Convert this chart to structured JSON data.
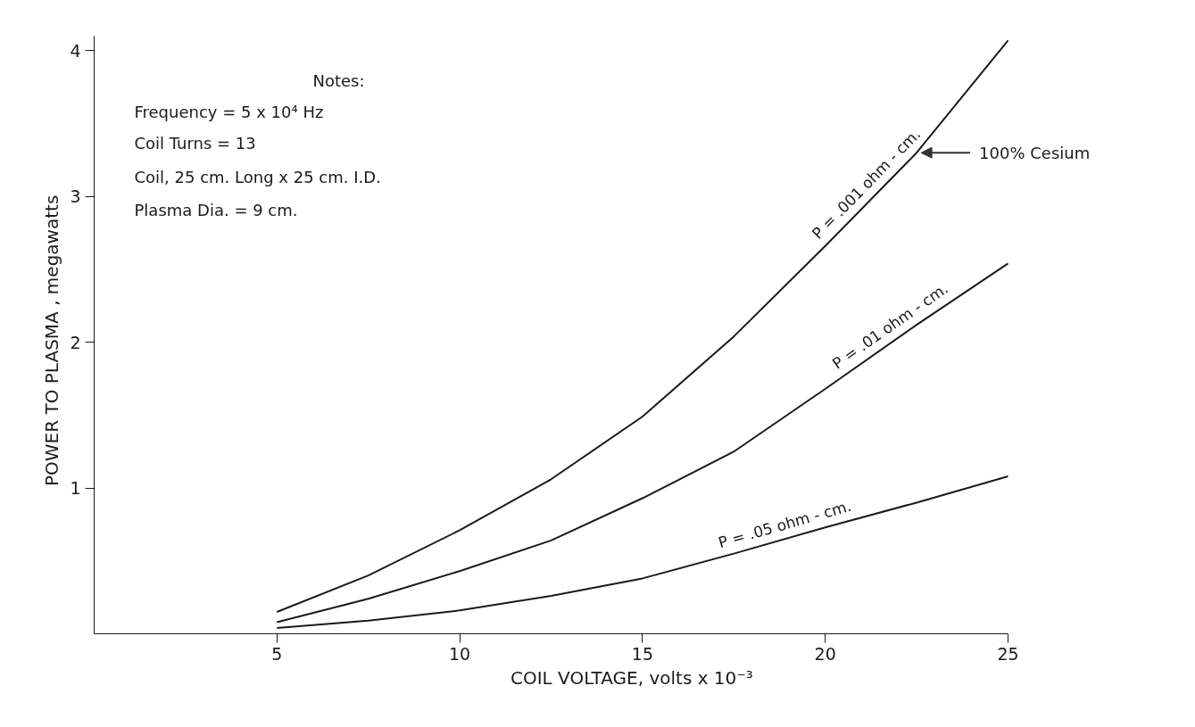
{
  "chart_data": {
    "type": "line",
    "xlabel": "COIL  VOLTAGE,  volts  x 10⁻³",
    "ylabel": "POWER  TO  PLASMA , megawatts",
    "x": [
      5,
      7.5,
      10,
      12.5,
      15,
      17.5,
      20,
      22.5,
      25
    ],
    "series": [
      {
        "name": "P = .001 ohm - cm.",
        "color": "#1a1a1a",
        "values": [
          0.15,
          0.4,
          0.71,
          1.06,
          1.49,
          2.04,
          2.66,
          3.3,
          4.07
        ]
      },
      {
        "name": "P = .01 ohm - cm.",
        "color": "#1a1a1a",
        "values": [
          0.08,
          0.24,
          0.43,
          0.64,
          0.93,
          1.25,
          1.68,
          2.12,
          2.54
        ]
      },
      {
        "name": "P = .05 ohm - cm.",
        "color": "#1a1a1a",
        "values": [
          0.04,
          0.09,
          0.16,
          0.26,
          0.38,
          0.55,
          0.73,
          0.9,
          1.08
        ]
      }
    ],
    "annotations": [
      "Notes:",
      "Frequency = 5 x 10⁴ Hz",
      "Coil  Turns = 13",
      "Coil, 25 cm. Long  x 25 cm. I.D.",
      "Plasma  Dia. = 9 cm.",
      {
        "text": "100% Cesium",
        "x": 22.5,
        "y": 3.3
      }
    ],
    "xlim": [
      0,
      25
    ],
    "ylim": [
      0,
      4.1
    ],
    "xticks": [
      5,
      10,
      15,
      20,
      25
    ],
    "yticks": [
      1,
      2,
      3,
      4
    ],
    "grid": false,
    "marker": "none",
    "line_style": "solid"
  }
}
